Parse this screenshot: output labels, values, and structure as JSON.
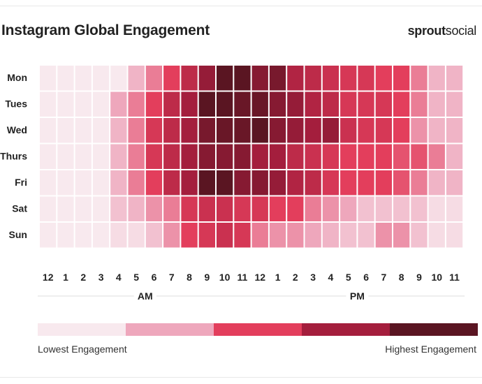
{
  "title": "Instagram Global Engagement",
  "brand": {
    "part1": "sprout",
    "part2": "social"
  },
  "chart_data": {
    "type": "heatmap",
    "title": "Instagram Global Engagement",
    "y_categories": [
      "Mon",
      "Tues",
      "Wed",
      "Thurs",
      "Fri",
      "Sat",
      "Sun"
    ],
    "x_categories": [
      "12",
      "1",
      "2",
      "3",
      "4",
      "5",
      "6",
      "7",
      "8",
      "9",
      "10",
      "11",
      "12",
      "1",
      "2",
      "3",
      "4",
      "5",
      "6",
      "7",
      "8",
      "9",
      "10",
      "11"
    ],
    "x_groups": [
      {
        "label": "AM",
        "from": 0,
        "to": 11
      },
      {
        "label": "PM",
        "from": 12,
        "to": 23
      }
    ],
    "scale_colors": [
      "#f8e9ee",
      "#eea7bc",
      "#e33e5c",
      "#a41e3d",
      "#5a1522"
    ],
    "values": [
      [
        0,
        0,
        0,
        0,
        0,
        0.8,
        1.4,
        2.0,
        2.6,
        3.2,
        4.2,
        4.2,
        3.4,
        3.6,
        2.8,
        2.6,
        2.4,
        2.2,
        2.2,
        2.0,
        2.0,
        1.4,
        0.8,
        0.8
      ],
      [
        0,
        0,
        0,
        0,
        1.0,
        1.4,
        2.0,
        2.6,
        3.0,
        4.2,
        4.2,
        3.8,
        3.8,
        3.4,
        3.2,
        2.8,
        2.6,
        2.2,
        2.2,
        2.2,
        2.0,
        1.4,
        0.8,
        0.8
      ],
      [
        0,
        0,
        0,
        0,
        0.8,
        1.4,
        2.2,
        2.6,
        3.0,
        3.6,
        3.8,
        3.8,
        4.0,
        3.4,
        3.2,
        3.0,
        3.2,
        2.4,
        2.2,
        2.2,
        2.0,
        1.2,
        0.8,
        0.8
      ],
      [
        0,
        0,
        0,
        0,
        0.8,
        1.4,
        2.2,
        2.6,
        3.0,
        3.4,
        3.4,
        3.4,
        3.0,
        3.0,
        2.6,
        2.4,
        2.2,
        2.0,
        2.0,
        2.0,
        1.8,
        1.8,
        1.4,
        0.8
      ],
      [
        0,
        0,
        0,
        0,
        0.8,
        1.4,
        2.0,
        2.6,
        3.0,
        4.2,
        4.2,
        3.4,
        3.4,
        3.2,
        2.8,
        2.6,
        2.2,
        2.0,
        2.0,
        2.0,
        1.8,
        1.4,
        0.8,
        0.8
      ],
      [
        0,
        0,
        0,
        0,
        0.6,
        0.8,
        1.2,
        1.4,
        2.2,
        2.4,
        2.4,
        2.2,
        2.2,
        2.0,
        2.0,
        1.4,
        1.2,
        1.0,
        0.6,
        0.6,
        0.6,
        0.6,
        0.2,
        0.2
      ],
      [
        0,
        0,
        0,
        0,
        0.2,
        0.2,
        0.6,
        1.2,
        2.0,
        2.2,
        2.4,
        2.2,
        1.4,
        1.2,
        1.2,
        1.0,
        0.8,
        0.6,
        0.6,
        1.2,
        1.2,
        0.6,
        0.2,
        0.2
      ]
    ]
  },
  "legend": {
    "low": "Lowest Engagement",
    "high": "Highest Engagement"
  }
}
